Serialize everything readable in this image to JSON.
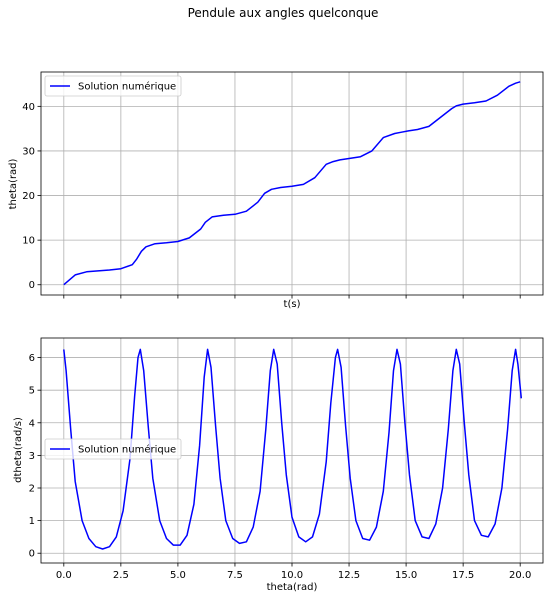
{
  "figure": {
    "suptitle": "Pendule aux angles quelconque"
  },
  "colors": {
    "series": "#0000ff",
    "grid": "#b0b0b0",
    "spine": "#000000"
  },
  "chart_data": [
    {
      "type": "line",
      "xlabel": "t(s)",
      "ylabel": "theta(rad)",
      "xlim": [
        -1.0,
        21.0
      ],
      "ylim": [
        -2.3,
        47.7
      ],
      "xticks": [
        0,
        2.5,
        5,
        7.5,
        10,
        12.5,
        15,
        17.5,
        20
      ],
      "xtick_labels_visible": false,
      "yticks": [
        0,
        10,
        20,
        30,
        40
      ],
      "ytick_labels": [
        "0",
        "10",
        "20",
        "30",
        "40"
      ],
      "grid": true,
      "legend_position": "upper-left",
      "series": [
        {
          "name": "Solution numérique",
          "x": [
            0,
            0.5,
            1,
            1.5,
            2,
            2.5,
            3,
            3.2,
            3.4,
            3.6,
            4,
            4.5,
            5,
            5.5,
            6,
            6.2,
            6.5,
            7,
            7.5,
            8,
            8.5,
            8.8,
            9.1,
            9.5,
            10,
            10.5,
            11,
            11.5,
            11.8,
            12.1,
            12.5,
            13,
            13.5,
            14,
            14.5,
            14.8,
            15.1,
            15.5,
            16,
            16.5,
            17,
            17.2,
            17.5,
            18,
            18.5,
            19,
            19.5,
            19.8,
            20
          ],
          "y": [
            0,
            2.2,
            2.9,
            3.1,
            3.3,
            3.6,
            4.5,
            5.8,
            7.5,
            8.5,
            9.2,
            9.4,
            9.7,
            10.5,
            12.5,
            14,
            15.2,
            15.6,
            15.8,
            16.5,
            18.5,
            20.5,
            21.4,
            21.8,
            22.1,
            22.5,
            24,
            27,
            27.6,
            28,
            28.3,
            28.7,
            30,
            33,
            33.9,
            34.2,
            34.5,
            34.8,
            35.5,
            37.5,
            39.5,
            40.1,
            40.5,
            40.8,
            41.2,
            42.5,
            44.5,
            45.2,
            45.5
          ]
        }
      ]
    },
    {
      "type": "line",
      "xlabel": "theta(rad)",
      "ylabel": "dtheta(rad/s)",
      "xlim": [
        -1.0,
        21.0
      ],
      "ylim": [
        -0.3,
        6.6
      ],
      "xticks": [
        0,
        2.5,
        5,
        7.5,
        10,
        12.5,
        15,
        17.5,
        20
      ],
      "xtick_labels": [
        "0.0",
        "2.5",
        "5.0",
        "7.5",
        "10.0",
        "12.5",
        "15.0",
        "17.5",
        "20.0"
      ],
      "yticks": [
        0,
        1,
        2,
        3,
        4,
        5,
        6
      ],
      "ytick_labels": [
        "0",
        "1",
        "2",
        "3",
        "4",
        "5",
        "6"
      ],
      "grid": true,
      "legend_position": "center-left",
      "series": [
        {
          "name": "Solution numérique",
          "x": [
            0,
            0.1,
            0.3,
            0.5,
            0.8,
            1.1,
            1.4,
            1.7,
            2.0,
            2.3,
            2.6,
            2.9,
            3.1,
            3.25,
            3.35,
            3.5,
            3.7,
            3.9,
            4.2,
            4.5,
            4.8,
            5.1,
            5.4,
            5.7,
            5.95,
            6.15,
            6.3,
            6.45,
            6.65,
            6.85,
            7.1,
            7.4,
            7.7,
            8.0,
            8.3,
            8.6,
            8.85,
            9.05,
            9.2,
            9.35,
            9.55,
            9.75,
            10.0,
            10.3,
            10.6,
            10.9,
            11.2,
            11.5,
            11.7,
            11.9,
            12.0,
            12.15,
            12.35,
            12.55,
            12.8,
            13.1,
            13.4,
            13.7,
            14.0,
            14.25,
            14.45,
            14.6,
            14.75,
            14.95,
            15.15,
            15.4,
            15.7,
            16.0,
            16.3,
            16.6,
            16.85,
            17.05,
            17.2,
            17.35,
            17.55,
            17.75,
            18.0,
            18.3,
            18.6,
            18.9,
            19.2,
            19.45,
            19.65,
            19.8,
            19.9,
            20.05
          ],
          "y": [
            6.25,
            5.6,
            3.8,
            2.2,
            1.0,
            0.45,
            0.2,
            0.13,
            0.2,
            0.5,
            1.3,
            2.9,
            4.8,
            6.0,
            6.25,
            5.6,
            3.9,
            2.3,
            1.0,
            0.45,
            0.25,
            0.25,
            0.55,
            1.5,
            3.3,
            5.4,
            6.25,
            5.7,
            3.9,
            2.3,
            1.0,
            0.45,
            0.3,
            0.35,
            0.8,
            1.9,
            3.8,
            5.6,
            6.25,
            5.8,
            4.0,
            2.4,
            1.1,
            0.5,
            0.35,
            0.5,
            1.2,
            2.8,
            4.6,
            6.0,
            6.25,
            5.7,
            3.9,
            2.3,
            1.0,
            0.45,
            0.4,
            0.8,
            1.9,
            3.7,
            5.6,
            6.25,
            5.8,
            4.0,
            2.4,
            1.0,
            0.5,
            0.45,
            0.9,
            2.0,
            3.8,
            5.6,
            6.25,
            5.8,
            4.0,
            2.4,
            1.0,
            0.55,
            0.5,
            0.9,
            2.0,
            3.8,
            5.6,
            6.25,
            5.8,
            4.75
          ]
        }
      ]
    }
  ]
}
